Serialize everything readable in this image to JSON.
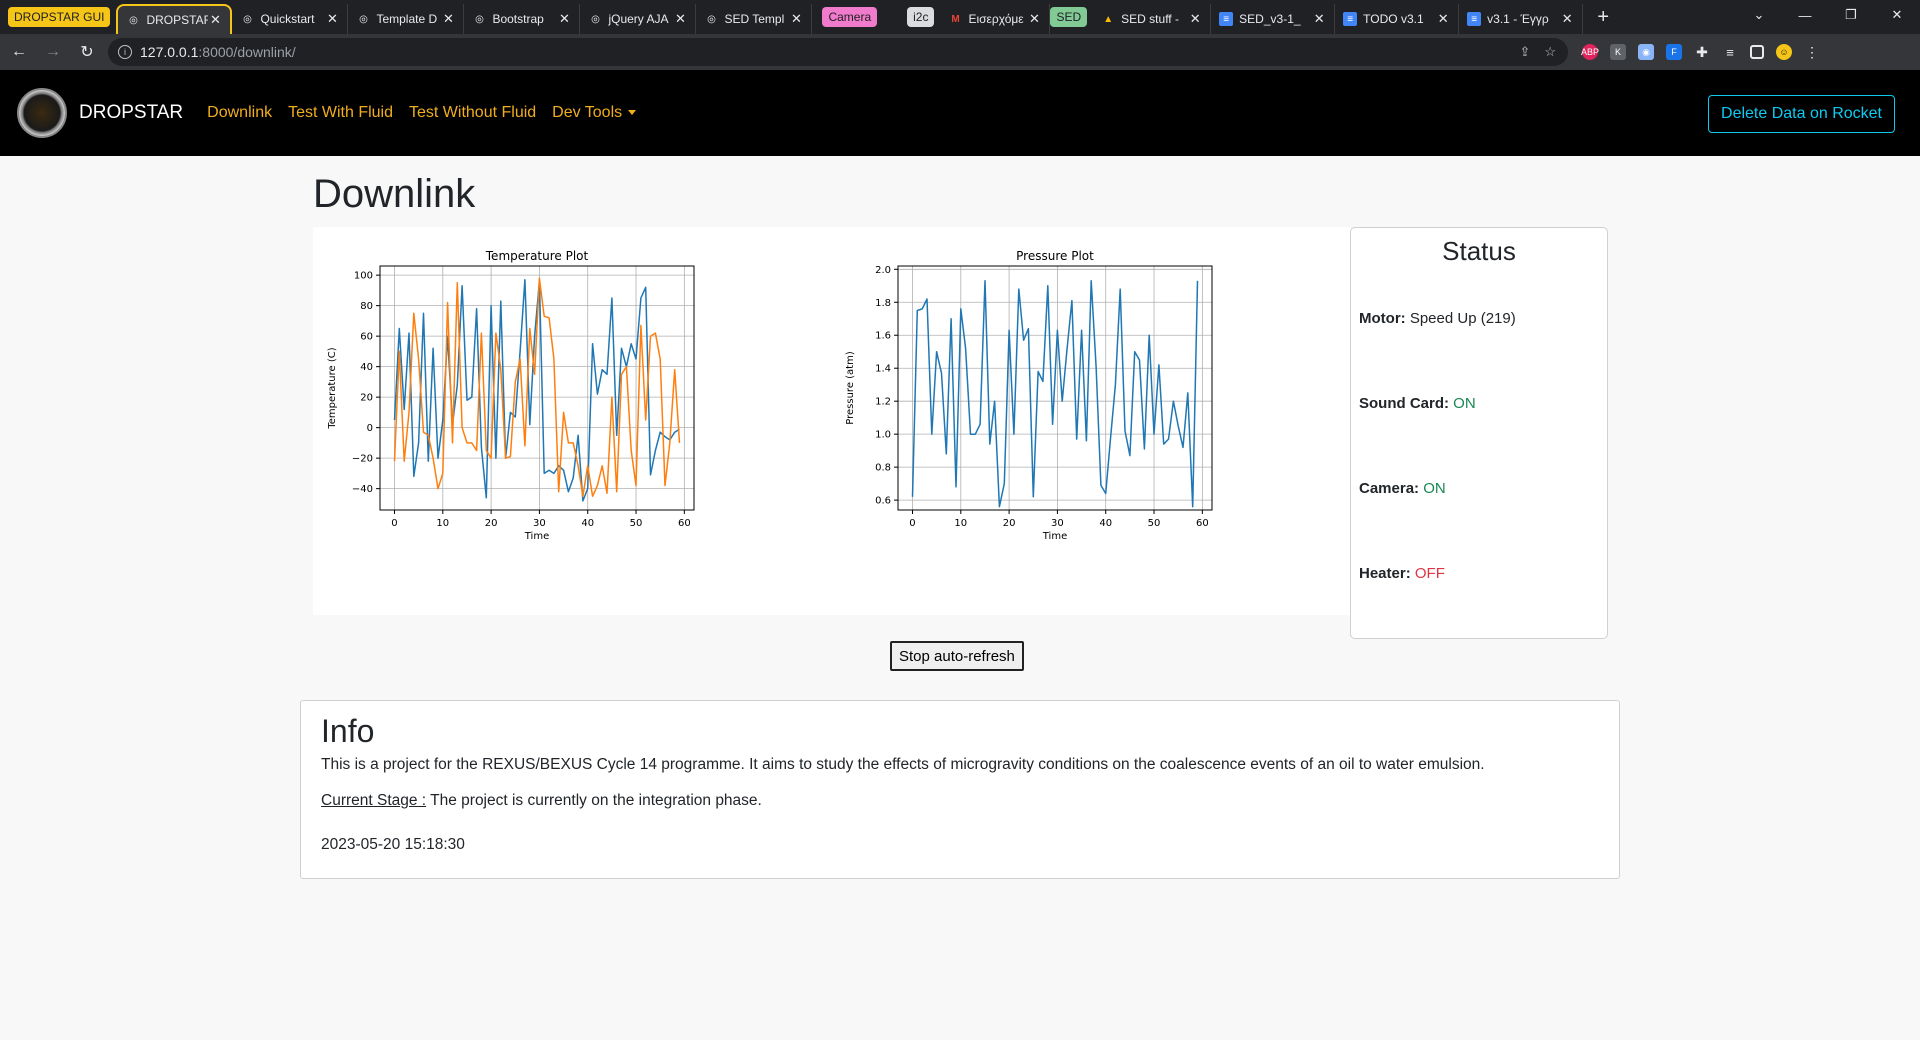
{
  "browser": {
    "tab_groups": [
      {
        "label": "DROPSTAR GUI",
        "color": "#f5c518"
      },
      {
        "label": "Camera",
        "color": "#f07acb"
      },
      {
        "label": "i2c",
        "color": "#dadce0"
      },
      {
        "label": "SED",
        "color": "#81c995"
      }
    ],
    "tabs": [
      {
        "title": "DROPSTAR",
        "active": true
      },
      {
        "title": "Quickstart"
      },
      {
        "title": "Template D"
      },
      {
        "title": "Bootstrap"
      },
      {
        "title": "jQuery AJA"
      },
      {
        "title": "SED Templ"
      },
      {
        "title": "Εισερχόμε"
      },
      {
        "title": "SED stuff -"
      },
      {
        "title": "SED_v3-1_"
      },
      {
        "title": "TODO v3.1"
      },
      {
        "title": "v3.1 - Έγγρ"
      }
    ],
    "url_host": "127.0.0.1",
    "url_rest": ":8000/downlink/"
  },
  "navbar": {
    "brand": "DROPSTAR",
    "links": [
      "Downlink",
      "Test With Fluid",
      "Test Without Fluid",
      "Dev Tools"
    ],
    "delete_button": "Delete Data on Rocket"
  },
  "page": {
    "title": "Downlink",
    "refresh_button": "Stop auto-refresh"
  },
  "status": {
    "title": "Status",
    "motor_label": "Motor:",
    "motor_value": "Speed Up (219)",
    "sound_label": "Sound Card:",
    "sound_value": "ON",
    "camera_label": "Camera:",
    "camera_value": "ON",
    "heater_label": "Heater:",
    "heater_value": "OFF",
    "colors": {
      "on": "#198754",
      "off": "#dc3545"
    }
  },
  "info": {
    "title": "Info",
    "description": "This is a project for the REXUS/BEXUS Cycle 14 programme. It aims to study the effects of microgravity conditions on the coalescence events of an oil to water emulsion.",
    "stage_label": "Current Stage :",
    "stage_text": "The project is currently on the integration phase.",
    "timestamp": "2023-05-20 15:18:30"
  },
  "chart_data": [
    {
      "type": "line",
      "title": "Temperature Plot",
      "xlabel": "Time",
      "ylabel": "Temperature (C)",
      "xlim": [
        -3,
        62
      ],
      "ylim": [
        -54,
        106
      ],
      "xticks": [
        0,
        10,
        20,
        30,
        40,
        50,
        60
      ],
      "yticks": [
        -40,
        -20,
        0,
        20,
        40,
        60,
        80,
        100
      ],
      "grid": true,
      "series": [
        {
          "color": "#1f77b4",
          "x": [
            0,
            1,
            2,
            3,
            4,
            5,
            6,
            7,
            8,
            9,
            10,
            11,
            12,
            13,
            14,
            15,
            16,
            17,
            18,
            19,
            20,
            21,
            22,
            23,
            24,
            25,
            26,
            27,
            28,
            29,
            30,
            31,
            32,
            33,
            34,
            35,
            36,
            37,
            38,
            39,
            40,
            41,
            42,
            43,
            44,
            45,
            46,
            47,
            48,
            49,
            50,
            51,
            52,
            53,
            54,
            55,
            56,
            57,
            58,
            59
          ],
          "values": [
            5,
            65,
            12,
            62,
            -32,
            -10,
            75,
            -22,
            52,
            -20,
            5,
            60,
            2,
            28,
            93,
            18,
            20,
            78,
            -13,
            -46,
            80,
            -20,
            83,
            -20,
            10,
            7,
            50,
            97,
            2,
            60,
            96,
            -30,
            -28,
            -30,
            -25,
            -28,
            -42,
            -33,
            -5,
            -48,
            -40,
            55,
            22,
            38,
            35,
            85,
            -5,
            52,
            40,
            55,
            45,
            85,
            92,
            -31,
            -15,
            -3,
            -6,
            -8,
            -3,
            -1
          ]
        },
        {
          "color": "#ff7f0e",
          "x": [
            0,
            1,
            2,
            3,
            4,
            5,
            6,
            7,
            8,
            9,
            10,
            11,
            12,
            13,
            14,
            15,
            16,
            17,
            18,
            19,
            20,
            21,
            22,
            23,
            24,
            25,
            26,
            27,
            28,
            29,
            30,
            31,
            32,
            33,
            34,
            35,
            36,
            37,
            38,
            39,
            40,
            41,
            42,
            43,
            44,
            45,
            46,
            47,
            48,
            49,
            50,
            51,
            52,
            53,
            54,
            55,
            56,
            57,
            58,
            59
          ],
          "values": [
            -22,
            50,
            -22,
            10,
            75,
            45,
            -3,
            -5,
            -20,
            -40,
            -30,
            82,
            -10,
            95,
            0,
            -10,
            -10,
            -15,
            62,
            -15,
            -20,
            62,
            38,
            -20,
            -19,
            30,
            45,
            -12,
            65,
            35,
            98,
            73,
            72,
            45,
            -42,
            10,
            -10,
            -10,
            -25,
            -45,
            -25,
            -45,
            -38,
            -25,
            -43,
            20,
            -42,
            35,
            40,
            -15,
            -38,
            67,
            5,
            60,
            62,
            45,
            -38,
            -10,
            38,
            -10
          ]
        }
      ]
    },
    {
      "type": "line",
      "title": "Pressure Plot",
      "xlabel": "Time",
      "ylabel": "Pressure (atm)",
      "xlim": [
        -3,
        62
      ],
      "ylim": [
        0.54,
        2.02
      ],
      "xticks": [
        0,
        10,
        20,
        30,
        40,
        50,
        60
      ],
      "yticks": [
        0.6,
        0.8,
        1.0,
        1.2,
        1.4,
        1.6,
        1.8,
        2.0
      ],
      "grid": true,
      "series": [
        {
          "color": "#1f77b4",
          "x": [
            0,
            1,
            2,
            3,
            4,
            5,
            6,
            7,
            8,
            9,
            10,
            11,
            12,
            13,
            14,
            15,
            16,
            17,
            18,
            19,
            20,
            21,
            22,
            23,
            24,
            25,
            26,
            27,
            28,
            29,
            30,
            31,
            32,
            33,
            34,
            35,
            36,
            37,
            38,
            39,
            40,
            41,
            42,
            43,
            44,
            45,
            46,
            47,
            48,
            49,
            50,
            51,
            52,
            53,
            54,
            55,
            56,
            57,
            58,
            59
          ],
          "values": [
            0.62,
            1.75,
            1.76,
            1.82,
            1.0,
            1.5,
            1.37,
            0.88,
            1.7,
            0.68,
            1.76,
            1.52,
            1.0,
            1.0,
            1.06,
            1.93,
            0.94,
            1.2,
            0.56,
            0.7,
            1.63,
            1.0,
            1.88,
            1.57,
            1.64,
            0.62,
            1.38,
            1.32,
            1.9,
            1.06,
            1.63,
            1.2,
            1.52,
            1.81,
            0.97,
            1.63,
            0.96,
            1.93,
            1.41,
            0.69,
            0.64,
            0.98,
            1.3,
            1.88,
            1.02,
            0.87,
            1.5,
            1.45,
            0.91,
            1.6,
            1.0,
            1.42,
            0.94,
            0.97,
            1.2,
            1.05,
            0.92,
            1.25,
            0.56,
            1.93
          ]
        }
      ]
    }
  ]
}
